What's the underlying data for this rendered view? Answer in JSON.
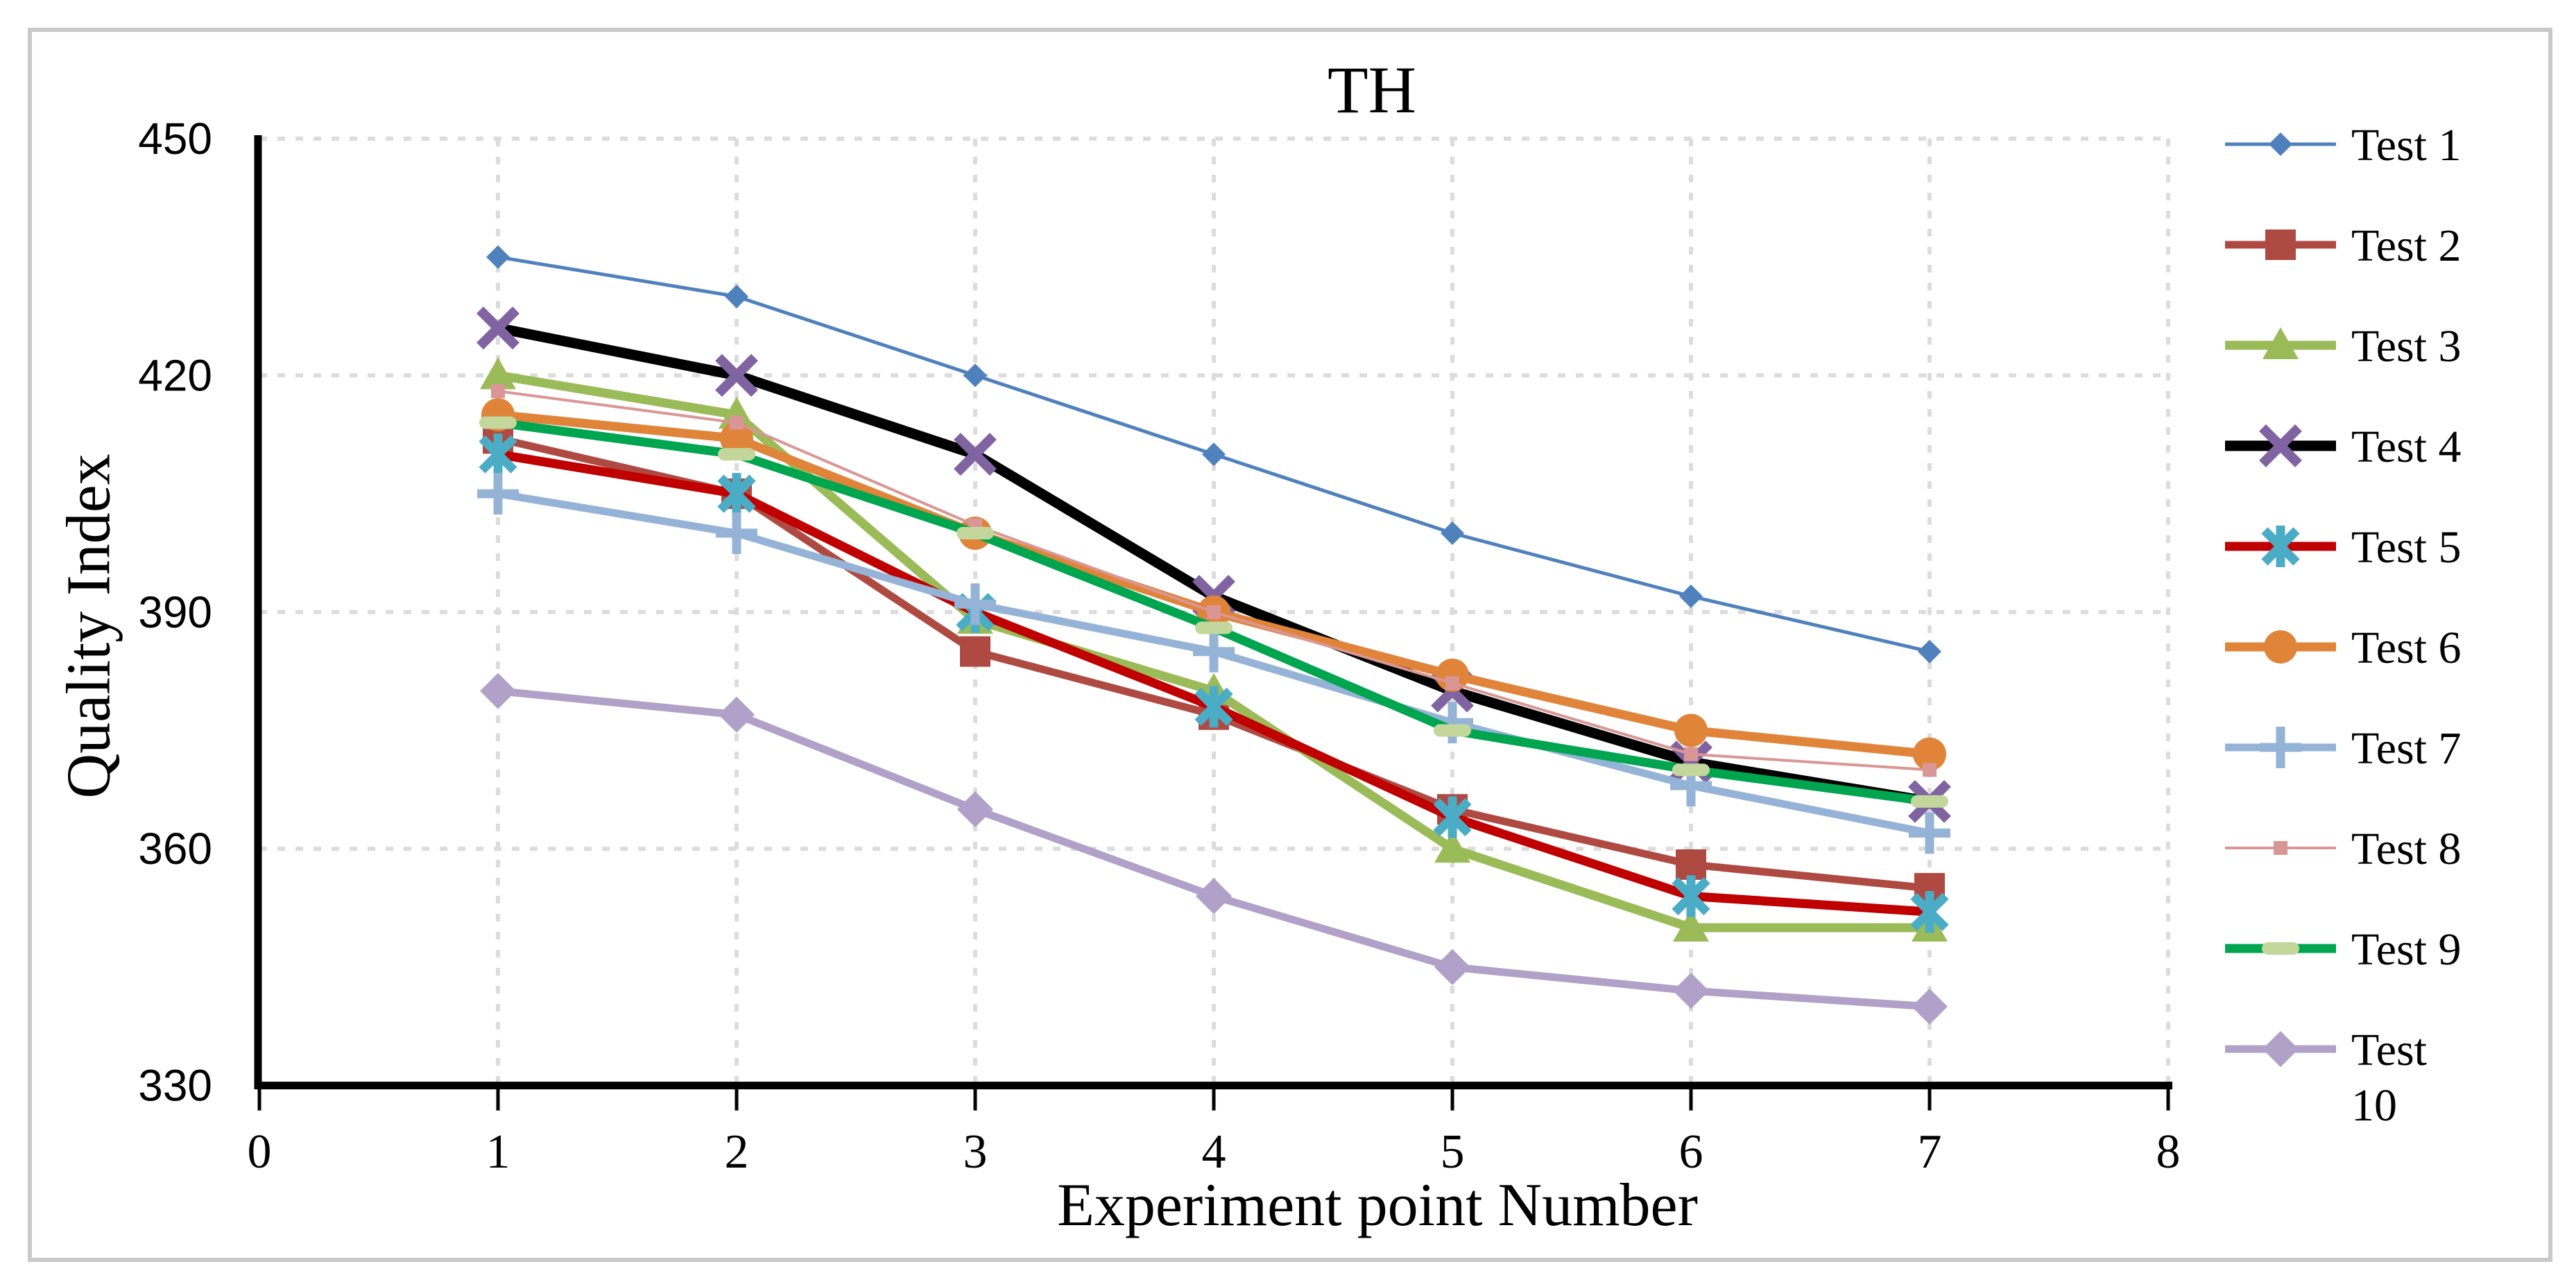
{
  "chart_data": {
    "type": "line",
    "title": "TH",
    "xlabel": "Experiment point Number",
    "ylabel": "Quality Index",
    "x": [
      1,
      2,
      3,
      4,
      5,
      6,
      7
    ],
    "xlim": [
      0,
      8
    ],
    "ylim": [
      330,
      450
    ],
    "xticks": [
      0,
      1,
      2,
      3,
      4,
      5,
      6,
      7,
      8
    ],
    "yticks": [
      330,
      360,
      390,
      420,
      450
    ],
    "grid": true,
    "legend_position": "right",
    "series": [
      {
        "name": "Test 1",
        "values": [
          435,
          430,
          420,
          410,
          400,
          392,
          385
        ],
        "color": "#4F81BD",
        "marker": "diamond-small",
        "line_width": 5
      },
      {
        "name": "Test 2",
        "values": [
          412,
          405,
          385,
          377,
          365,
          358,
          355
        ],
        "color": "#AE4A42",
        "marker": "square",
        "line_width": 11
      },
      {
        "name": "Test 3",
        "values": [
          420,
          415,
          389,
          380,
          360,
          350,
          350
        ],
        "color": "#9BBB59",
        "marker": "triangle",
        "line_width": 13
      },
      {
        "name": "Test 4",
        "values": [
          426,
          420,
          410,
          392,
          380,
          371,
          366
        ],
        "color": "#000000",
        "marker": "x",
        "marker_color": "#8064A2",
        "line_width": 15
      },
      {
        "name": "Test 5",
        "values": [
          410,
          405,
          390,
          378,
          364,
          354,
          352
        ],
        "color": "#C00000",
        "marker": "asterisk",
        "marker_color": "#4BACC6",
        "line_width": 13
      },
      {
        "name": "Test 6",
        "values": [
          415,
          412,
          400,
          390,
          382,
          375,
          372
        ],
        "color": "#E0843A",
        "marker": "circle",
        "line_width": 13
      },
      {
        "name": "Test 7",
        "values": [
          405,
          400,
          391,
          385,
          376,
          368,
          362
        ],
        "color": "#95B3D7",
        "marker": "plus",
        "line_width": 11
      },
      {
        "name": "Test 8",
        "values": [
          418,
          414,
          401,
          390,
          381,
          372,
          370
        ],
        "color": "#D99694",
        "marker": "square-small",
        "line_width": 4
      },
      {
        "name": "Test 9",
        "values": [
          414,
          410,
          400,
          388,
          375,
          370,
          366
        ],
        "color": "#00A550",
        "marker": "pill",
        "marker_color": "#C3D69B",
        "line_width": 13
      },
      {
        "name": "Test 10",
        "values": [
          380,
          377,
          365,
          354,
          345,
          342,
          340
        ],
        "color": "#B1A0C7",
        "marker": "diamond",
        "line_width": 11
      }
    ]
  },
  "style": {
    "grid_color": "#DCDCDC",
    "axis_color": "#000000",
    "frame_border_color": "#C9C9C9",
    "text_color": "#000000"
  }
}
